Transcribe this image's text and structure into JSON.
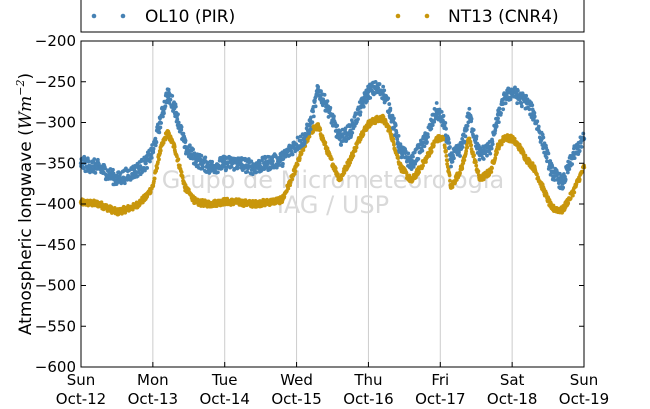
{
  "chart_data": {
    "type": "scatter",
    "ylabel": "Atmospheric longwave (Wm⁻²)",
    "ylabel_text": "Atmospheric longwave (",
    "ylabel_unit": "Wm",
    "ylabel_exp": "−2",
    "ylabel_close": ")",
    "ylim": [
      -600,
      -200
    ],
    "yticks": [
      -600,
      -550,
      -500,
      -450,
      -400,
      -350,
      -300,
      -250,
      -200
    ],
    "ytick_labels": [
      "−600",
      "−550",
      "−500",
      "−450",
      "−400",
      "−350",
      "−300",
      "−250",
      "−200"
    ],
    "xlim": [
      0,
      7
    ],
    "xticks": [
      {
        "day": "Sun",
        "date": "Oct-12",
        "x": 0
      },
      {
        "day": "Mon",
        "date": "Oct-13",
        "x": 1
      },
      {
        "day": "Tue",
        "date": "Oct-14",
        "x": 2
      },
      {
        "day": "Wed",
        "date": "Oct-15",
        "x": 3
      },
      {
        "day": "Thu",
        "date": "Oct-16",
        "x": 4
      },
      {
        "day": "Fri",
        "date": "Oct-17",
        "x": 5
      },
      {
        "day": "Sat",
        "date": "Oct-18",
        "x": 6
      },
      {
        "day": "Sun",
        "date": "Oct-19",
        "x": 7
      }
    ],
    "grid": "vertical",
    "legend_placement": "top",
    "watermark": [
      "Grupo de Micrometeorologia",
      "IAG / USP"
    ],
    "series": [
      {
        "name": "OL10 (PIR)",
        "color": "#4682b4",
        "x": [
          0,
          0.25,
          0.5,
          0.75,
          0.9,
          1.0,
          1.1,
          1.2,
          1.3,
          1.45,
          1.6,
          1.8,
          2.0,
          2.2,
          2.4,
          2.6,
          2.8,
          2.95,
          3.1,
          3.2,
          3.3,
          3.45,
          3.6,
          3.75,
          3.9,
          4.0,
          4.1,
          4.2,
          4.3,
          4.45,
          4.6,
          4.8,
          4.95,
          5.05,
          5.15,
          5.3,
          5.4,
          5.55,
          5.7,
          5.8,
          5.9,
          6.0,
          6.1,
          6.2,
          6.3,
          6.45,
          6.55,
          6.7,
          6.85,
          7.0
        ],
        "y": [
          -350,
          -355,
          -370,
          -360,
          -350,
          -335,
          -300,
          -265,
          -280,
          -330,
          -345,
          -355,
          -350,
          -350,
          -355,
          -350,
          -345,
          -330,
          -320,
          -300,
          -260,
          -285,
          -320,
          -310,
          -280,
          -262,
          -258,
          -262,
          -285,
          -335,
          -350,
          -320,
          -285,
          -300,
          -345,
          -330,
          -290,
          -340,
          -330,
          -295,
          -270,
          -262,
          -270,
          -275,
          -290,
          -330,
          -360,
          -375,
          -340,
          -320
        ]
      },
      {
        "name": "NT13 (CNR4)",
        "color": "#c8960c",
        "x": [
          0,
          0.25,
          0.5,
          0.75,
          0.9,
          1.0,
          1.1,
          1.2,
          1.3,
          1.45,
          1.6,
          1.8,
          2.0,
          2.2,
          2.4,
          2.6,
          2.8,
          2.95,
          3.1,
          3.2,
          3.3,
          3.45,
          3.6,
          3.75,
          3.9,
          4.0,
          4.1,
          4.2,
          4.3,
          4.45,
          4.6,
          4.8,
          4.95,
          5.05,
          5.15,
          5.3,
          5.4,
          5.55,
          5.7,
          5.8,
          5.9,
          6.0,
          6.1,
          6.2,
          6.3,
          6.45,
          6.55,
          6.7,
          6.85,
          7.0
        ],
        "y": [
          -398,
          -400,
          -410,
          -403,
          -392,
          -378,
          -335,
          -312,
          -330,
          -380,
          -398,
          -400,
          -397,
          -398,
          -400,
          -398,
          -395,
          -365,
          -330,
          -310,
          -305,
          -340,
          -370,
          -345,
          -315,
          -302,
          -297,
          -295,
          -310,
          -355,
          -372,
          -345,
          -320,
          -320,
          -380,
          -355,
          -320,
          -370,
          -360,
          -330,
          -318,
          -320,
          -330,
          -345,
          -355,
          -385,
          -405,
          -408,
          -385,
          -355
        ]
      }
    ]
  }
}
